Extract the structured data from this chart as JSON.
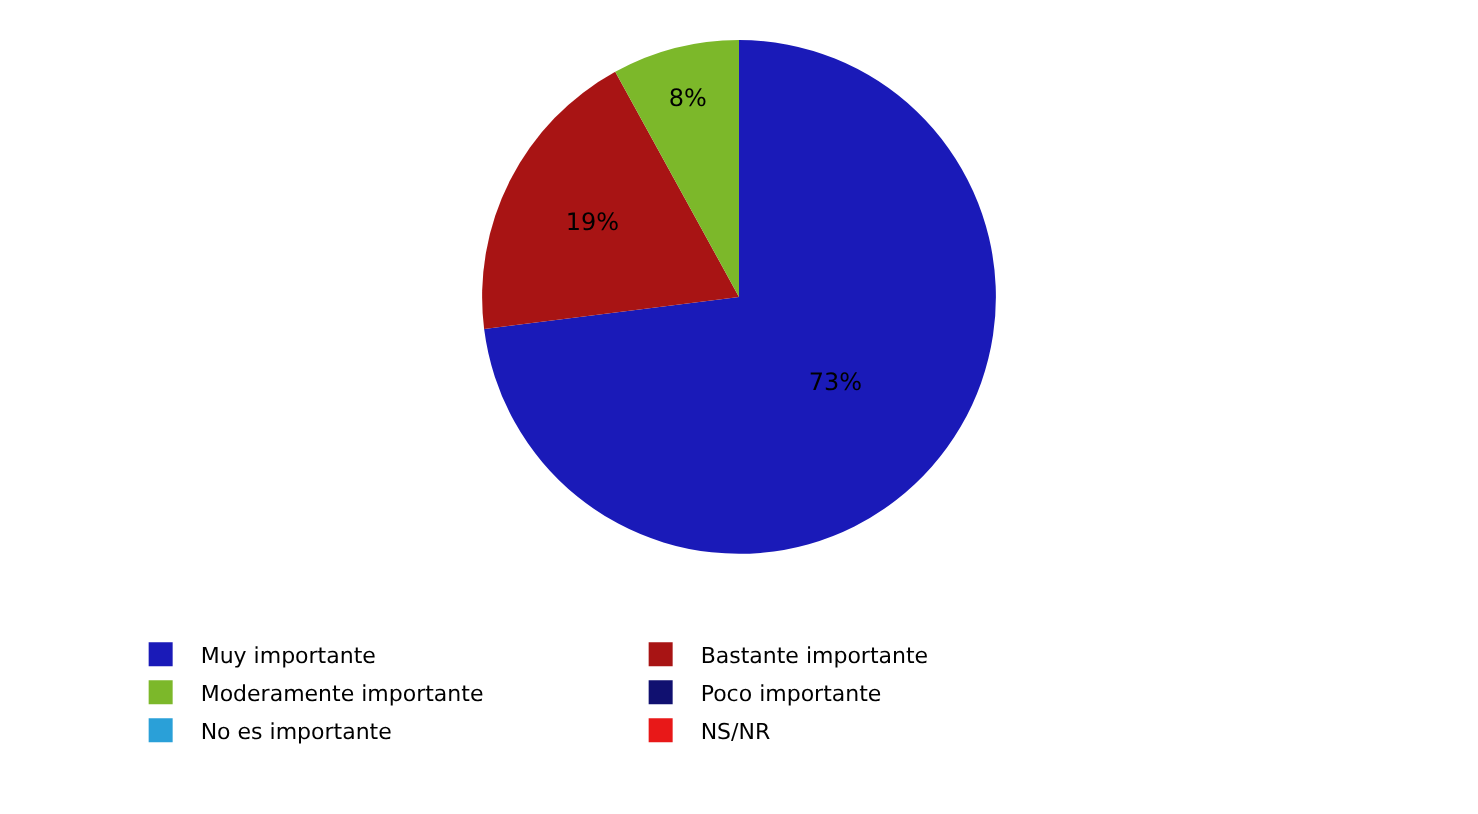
{
  "chart_data": {
    "type": "pie",
    "categories": [
      "Muy importante",
      "Bastante importante",
      "Moderamente importante",
      "Poco importante",
      "No es importante",
      "NS/NR"
    ],
    "values": [
      73,
      19,
      8,
      0,
      0,
      0
    ],
    "colors": [
      "#1a1ab8",
      "#a81414",
      "#7cb82a",
      "#101070",
      "#2aa0d8",
      "#e81818"
    ],
    "value_labels": [
      "73%",
      "19%",
      "8%",
      null,
      null,
      null
    ],
    "legend": "bottom"
  }
}
